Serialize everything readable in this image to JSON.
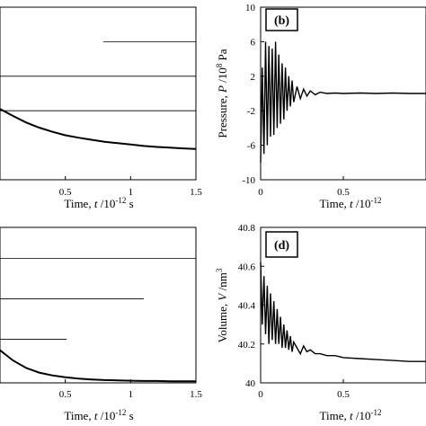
{
  "chart_data": [
    {
      "type": "line",
      "panel_label": "",
      "xlabel": {
        "main": "Time, ",
        "var": "t",
        "unit": "  /10",
        "exp": "-12",
        "suffix": " s"
      },
      "ylabel": "",
      "xlim": [
        0,
        1.5
      ],
      "ylim": [
        0,
        5
      ],
      "xticks": [
        "0.5",
        "1",
        "1.5"
      ],
      "xtick_values": [
        0.5,
        1,
        1.5
      ],
      "yticks": [],
      "ytick_values": [],
      "gridlines_y": [
        4,
        3,
        2
      ],
      "series": [
        {
          "x": [
            0.0,
            0.1,
            0.2,
            0.3,
            0.4,
            0.5,
            0.6,
            0.7,
            0.8,
            0.9,
            1.0,
            1.1,
            1.2,
            1.3,
            1.4,
            1.5
          ],
          "y": [
            2.05,
            1.85,
            1.66,
            1.51,
            1.39,
            1.29,
            1.22,
            1.16,
            1.1,
            1.06,
            1.02,
            0.98,
            0.95,
            0.93,
            0.91,
            0.89
          ]
        }
      ]
    },
    {
      "type": "line",
      "panel_label": "(b)",
      "xlabel": {
        "main": "Time, ",
        "var": "t",
        "unit": "  /10",
        "exp": "-12",
        "suffix": ""
      },
      "ylabel": {
        "main": "Pressure, ",
        "var": "P",
        "unit": " /10",
        "exp": "8",
        "suffix": " Pa"
      },
      "xlim": [
        0,
        1.0
      ],
      "ylim": [
        -10,
        10
      ],
      "xticks": [
        "0",
        "0.5"
      ],
      "xtick_values": [
        0,
        0.5
      ],
      "yticks": [
        "10",
        "6",
        "2",
        "-2",
        "-6",
        "-10"
      ],
      "ytick_values": [
        10,
        6,
        2,
        -2,
        -6,
        -10
      ],
      "gridlines_y": [],
      "series": [
        {
          "x": [
            0.0,
            0.01,
            0.02,
            0.03,
            0.04,
            0.05,
            0.06,
            0.07,
            0.08,
            0.09,
            0.1,
            0.11,
            0.12,
            0.13,
            0.14,
            0.15,
            0.16,
            0.17,
            0.18,
            0.19,
            0.2,
            0.22,
            0.24,
            0.26,
            0.28,
            0.3,
            0.33,
            0.36,
            0.4,
            0.45,
            0.5,
            0.6,
            0.7,
            0.8,
            0.9,
            1.0
          ],
          "y": [
            -8.0,
            3.0,
            -7.0,
            6.0,
            -6.0,
            5.5,
            -5.0,
            5.2,
            -4.8,
            6.0,
            -4.0,
            4.5,
            -3.5,
            3.5,
            -3.0,
            3.0,
            -2.0,
            2.0,
            -1.5,
            1.5,
            -1.0,
            0.8,
            -0.6,
            0.5,
            -0.3,
            0.3,
            -0.15,
            0.15,
            0.0,
            0.05,
            0.0,
            0.05,
            0.0,
            0.05,
            0.0,
            0.0
          ]
        }
      ]
    },
    {
      "type": "line",
      "panel_label": "",
      "xlabel": {
        "main": "Time, ",
        "var": "t",
        "unit": "  /10",
        "exp": "-12",
        "suffix": " s"
      },
      "ylabel": "",
      "xlim": [
        0,
        1.5
      ],
      "ylim": [
        0,
        5
      ],
      "xticks": [
        "0.5",
        "1",
        "1.5"
      ],
      "xtick_values": [
        0.5,
        1,
        1.5
      ],
      "yticks": [],
      "ytick_values": [],
      "gridlines_y": [
        4,
        2.7,
        1.4
      ],
      "series": [
        {
          "x": [
            0.0,
            0.1,
            0.2,
            0.3,
            0.4,
            0.5,
            0.6,
            0.7,
            0.8,
            0.9,
            1.0,
            1.1,
            1.2,
            1.3,
            1.4,
            1.5
          ],
          "y": [
            1.05,
            0.72,
            0.48,
            0.33,
            0.24,
            0.18,
            0.14,
            0.11,
            0.09,
            0.08,
            0.07,
            0.06,
            0.06,
            0.05,
            0.05,
            0.05
          ]
        }
      ]
    },
    {
      "type": "line",
      "panel_label": "(d)",
      "xlabel": {
        "main": "Time, ",
        "var": "t",
        "unit": "  /10",
        "exp": "-12",
        "suffix": ""
      },
      "ylabel": {
        "main": "Volume, ",
        "var": "V",
        "unit": " /nm",
        "exp": "3",
        "suffix": ""
      },
      "xlim": [
        0,
        1.0
      ],
      "ylim": [
        40,
        40.8
      ],
      "xticks": [
        "0",
        "0.5"
      ],
      "xtick_values": [
        0,
        0.5
      ],
      "yticks": [
        "40.8",
        "40.6",
        "40.4",
        "40.2",
        "40"
      ],
      "ytick_values": [
        40.8,
        40.6,
        40.4,
        40.2,
        40
      ],
      "gridlines_y": [],
      "series": [
        {
          "x": [
            0.0,
            0.01,
            0.02,
            0.03,
            0.04,
            0.05,
            0.06,
            0.07,
            0.08,
            0.09,
            0.1,
            0.11,
            0.12,
            0.13,
            0.14,
            0.15,
            0.16,
            0.17,
            0.18,
            0.19,
            0.2,
            0.22,
            0.24,
            0.26,
            0.28,
            0.3,
            0.33,
            0.36,
            0.4,
            0.45,
            0.5,
            0.6,
            0.7,
            0.8,
            0.9,
            1.0
          ],
          "y": [
            40.62,
            40.3,
            40.55,
            40.25,
            40.5,
            40.2,
            40.46,
            40.22,
            40.42,
            40.2,
            40.38,
            40.2,
            40.34,
            40.18,
            40.3,
            40.18,
            40.27,
            40.17,
            40.24,
            40.16,
            40.21,
            40.18,
            40.15,
            40.19,
            40.16,
            40.17,
            40.15,
            40.15,
            40.14,
            40.14,
            40.13,
            40.125,
            40.12,
            40.115,
            40.11,
            40.11
          ]
        }
      ]
    }
  ]
}
